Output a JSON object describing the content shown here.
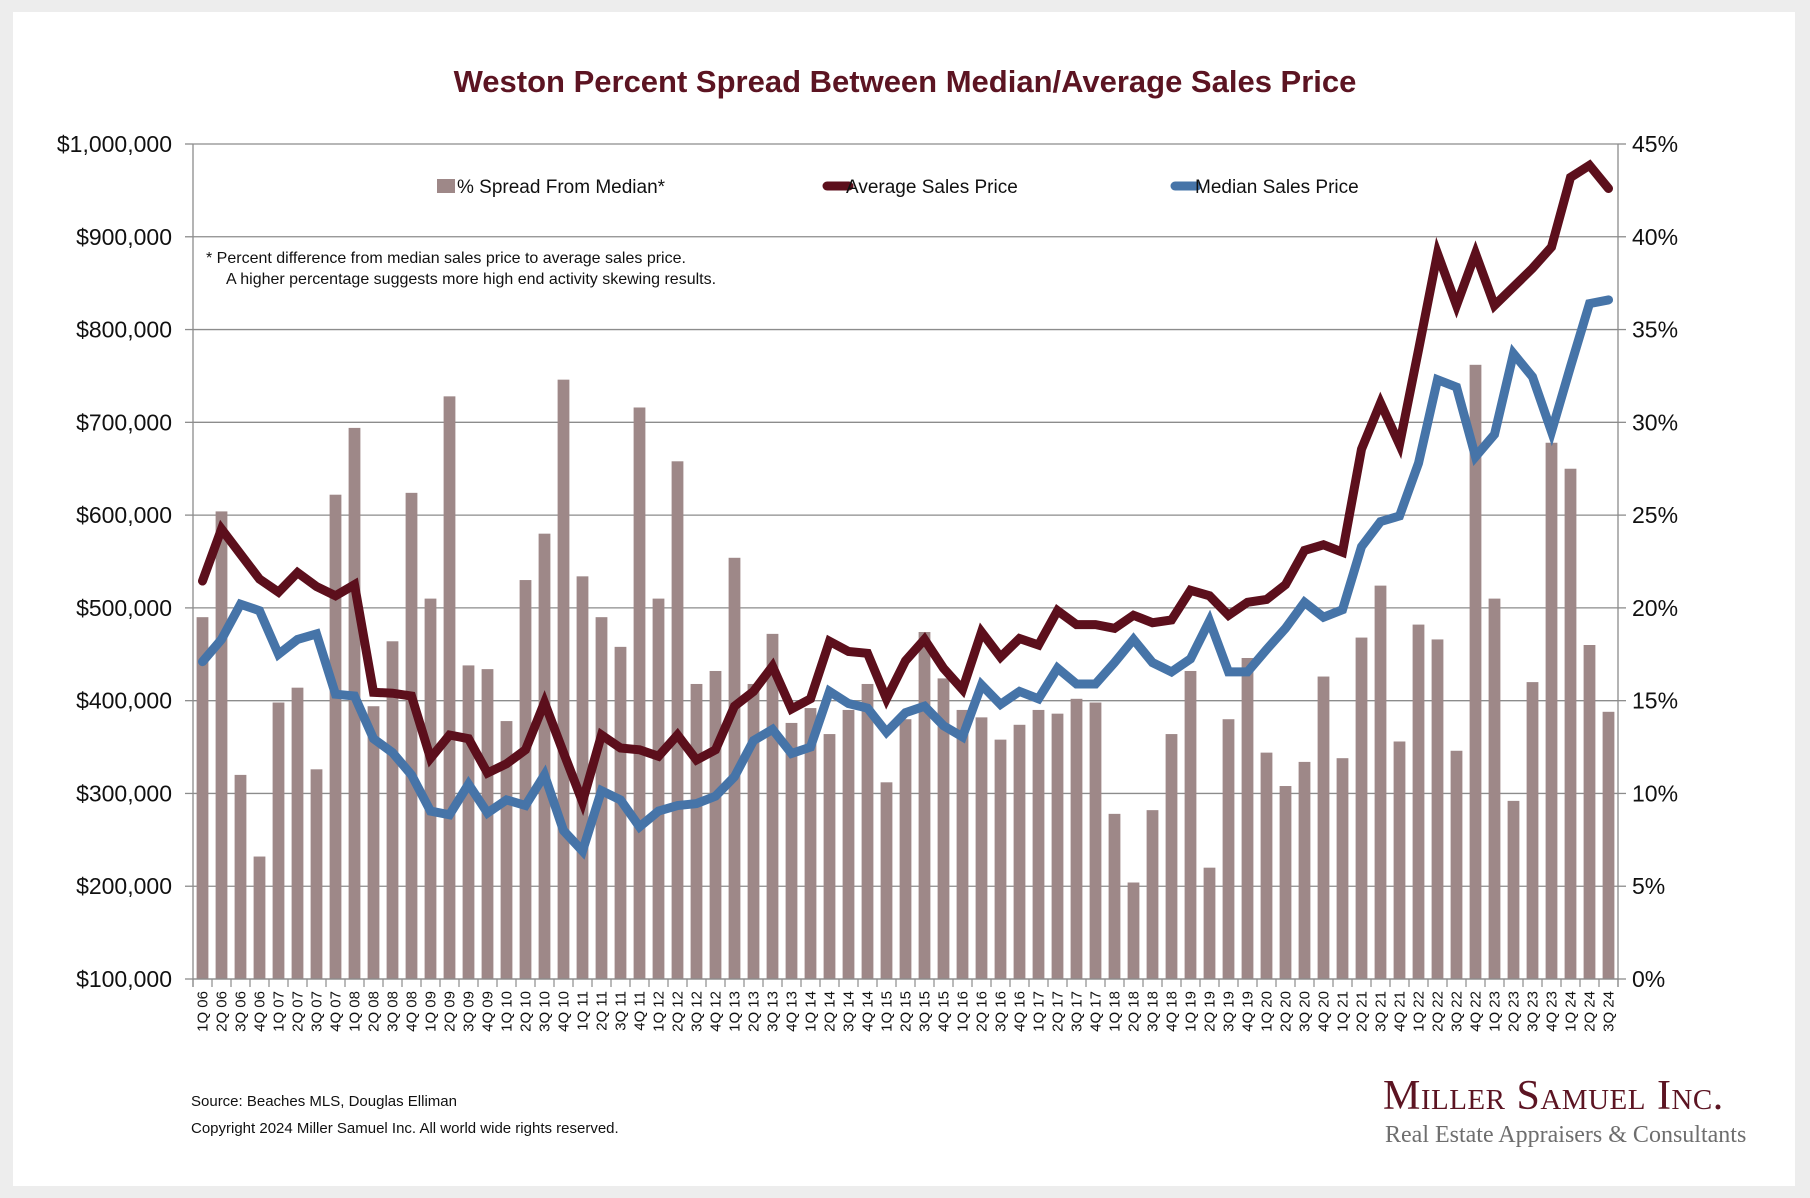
{
  "page": {
    "source": "Source: Beaches MLS, Douglas Elliman",
    "copyright": "Copyright 2024 Miller Samuel Inc.  All world wide rights reserved.",
    "logo": {
      "name": "Miller Samuel Inc.",
      "tagline": "Real Estate Appraisers & Consultants"
    }
  },
  "chart_data": {
    "type": "bar",
    "title": "Weston Percent Spread Between Median/Average Sales Price",
    "footnote": [
      "*  Percent difference from median sales price to average sales price.",
      "A higher percentage suggests more high end activity skewing results."
    ],
    "legend_position": "top",
    "grid": true,
    "y_left": {
      "range": [
        100000,
        1000000
      ],
      "ticks": [
        100000,
        200000,
        300000,
        400000,
        500000,
        600000,
        700000,
        800000,
        900000,
        1000000
      ],
      "tick_labels": [
        "$100,000",
        "$200,000",
        "$300,000",
        "$400,000",
        "$500,000",
        "$600,000",
        "$700,000",
        "$800,000",
        "$900,000",
        "$1,000,000"
      ]
    },
    "y_right": {
      "range": [
        0,
        45
      ],
      "ticks": [
        0,
        5,
        10,
        15,
        20,
        25,
        30,
        35,
        40,
        45
      ],
      "tick_labels": [
        "0%",
        "5%",
        "10%",
        "15%",
        "20%",
        "25%",
        "30%",
        "35%",
        "40%",
        "45%"
      ]
    },
    "categories": [
      "1Q 06",
      "2Q 06",
      "3Q 06",
      "4Q 06",
      "1Q 07",
      "2Q 07",
      "3Q 07",
      "4Q 07",
      "1Q 08",
      "2Q 08",
      "3Q 08",
      "4Q 08",
      "1Q 09",
      "2Q 09",
      "3Q 09",
      "4Q 09",
      "1Q 10",
      "2Q 10",
      "3Q 10",
      "4Q 10",
      "1Q 11",
      "2Q 11",
      "3Q 11",
      "4Q 11",
      "1Q 12",
      "2Q 12",
      "3Q 12",
      "4Q 12",
      "1Q 13",
      "2Q 13",
      "3Q 13",
      "4Q 13",
      "1Q 14",
      "2Q 14",
      "3Q 14",
      "4Q 14",
      "1Q 15",
      "2Q 15",
      "3Q 15",
      "4Q 15",
      "1Q 16",
      "2Q 16",
      "3Q 16",
      "4Q 16",
      "1Q 17",
      "2Q 17",
      "3Q 17",
      "4Q 17",
      "1Q 18",
      "2Q 18",
      "3Q 18",
      "4Q 18",
      "1Q 19",
      "2Q 19",
      "3Q 19",
      "4Q 19",
      "1Q 20",
      "2Q 20",
      "3Q 20",
      "4Q 20",
      "1Q 21",
      "2Q 21",
      "3Q 21",
      "4Q 21",
      "1Q 22",
      "2Q 22",
      "3Q 22",
      "4Q 22",
      "1Q 23",
      "2Q 23",
      "3Q 23",
      "4Q 23",
      "1Q 24",
      "2Q 24",
      "3Q 24"
    ],
    "series": [
      {
        "name": "% Spread From Median*",
        "type": "bar",
        "axis": "right",
        "color": "#9e8888",
        "values": [
          19.5,
          25.2,
          11.0,
          6.6,
          14.9,
          15.7,
          11.3,
          26.1,
          29.7,
          14.7,
          18.2,
          26.2,
          20.5,
          31.4,
          16.9,
          16.7,
          13.9,
          21.5,
          24.0,
          32.3,
          21.7,
          19.5,
          17.9,
          30.8,
          20.5,
          27.9,
          15.9,
          16.6,
          22.7,
          15.9,
          18.6,
          13.8,
          14.6,
          13.2,
          14.5,
          15.9,
          10.6,
          14.0,
          18.7,
          16.2,
          14.5,
          14.1,
          12.9,
          13.7,
          14.5,
          14.3,
          15.1,
          14.9,
          8.9,
          5.2,
          9.1,
          13.2,
          16.6,
          6.0,
          14.0,
          17.3,
          12.2,
          10.4,
          11.7,
          16.3,
          11.9,
          18.4,
          21.2,
          12.8,
          19.1,
          18.3,
          12.3,
          33.1,
          20.5,
          9.6,
          16.0,
          28.9,
          27.5,
          18.0,
          14.4
        ]
      },
      {
        "name": "Average Sales Price",
        "type": "line",
        "axis": "left",
        "color": "#5c0f1c",
        "values": [
          529000,
          585000,
          558000,
          531000,
          517000,
          538000,
          523000,
          513000,
          525000,
          409000,
          408000,
          405000,
          338000,
          363000,
          359000,
          322000,
          332000,
          347000,
          398000,
          344000,
          291000,
          363000,
          349000,
          347000,
          340000,
          363000,
          336000,
          347000,
          394000,
          410000,
          437000,
          391000,
          402000,
          464000,
          453000,
          451000,
          402000,
          443000,
          466000,
          435000,
          412000,
          474000,
          447000,
          467000,
          460000,
          497000,
          482000,
          482000,
          478000,
          492000,
          484000,
          487000,
          519000,
          513000,
          492000,
          506000,
          509000,
          525000,
          562000,
          568000,
          560000,
          671000,
          721000,
          676000,
          778000,
          882000,
          826000,
          882000,
          826000,
          846000,
          866000,
          889000,
          964000,
          977000,
          952000
        ]
      },
      {
        "name": "Median Sales Price",
        "type": "line",
        "axis": "left",
        "color": "#4674a8",
        "values": [
          442000,
          466000,
          504000,
          497000,
          450000,
          466000,
          472000,
          407000,
          405000,
          359000,
          344000,
          320000,
          281000,
          277000,
          310000,
          279000,
          293000,
          287000,
          320000,
          260000,
          238000,
          303000,
          293000,
          264000,
          281000,
          287000,
          289000,
          297000,
          318000,
          357000,
          369000,
          343000,
          350000,
          410000,
          397000,
          392000,
          366000,
          387000,
          394000,
          373000,
          361000,
          417000,
          396000,
          410000,
          402000,
          435000,
          418000,
          418000,
          441000,
          466000,
          441000,
          431000,
          445000,
          486000,
          431000,
          431000,
          455000,
          478000,
          506000,
          490000,
          498000,
          566000,
          593000,
          599000,
          656000,
          746000,
          738000,
          663000,
          687000,
          774000,
          749000,
          690000,
          760000,
          828000,
          832000
        ]
      }
    ]
  }
}
